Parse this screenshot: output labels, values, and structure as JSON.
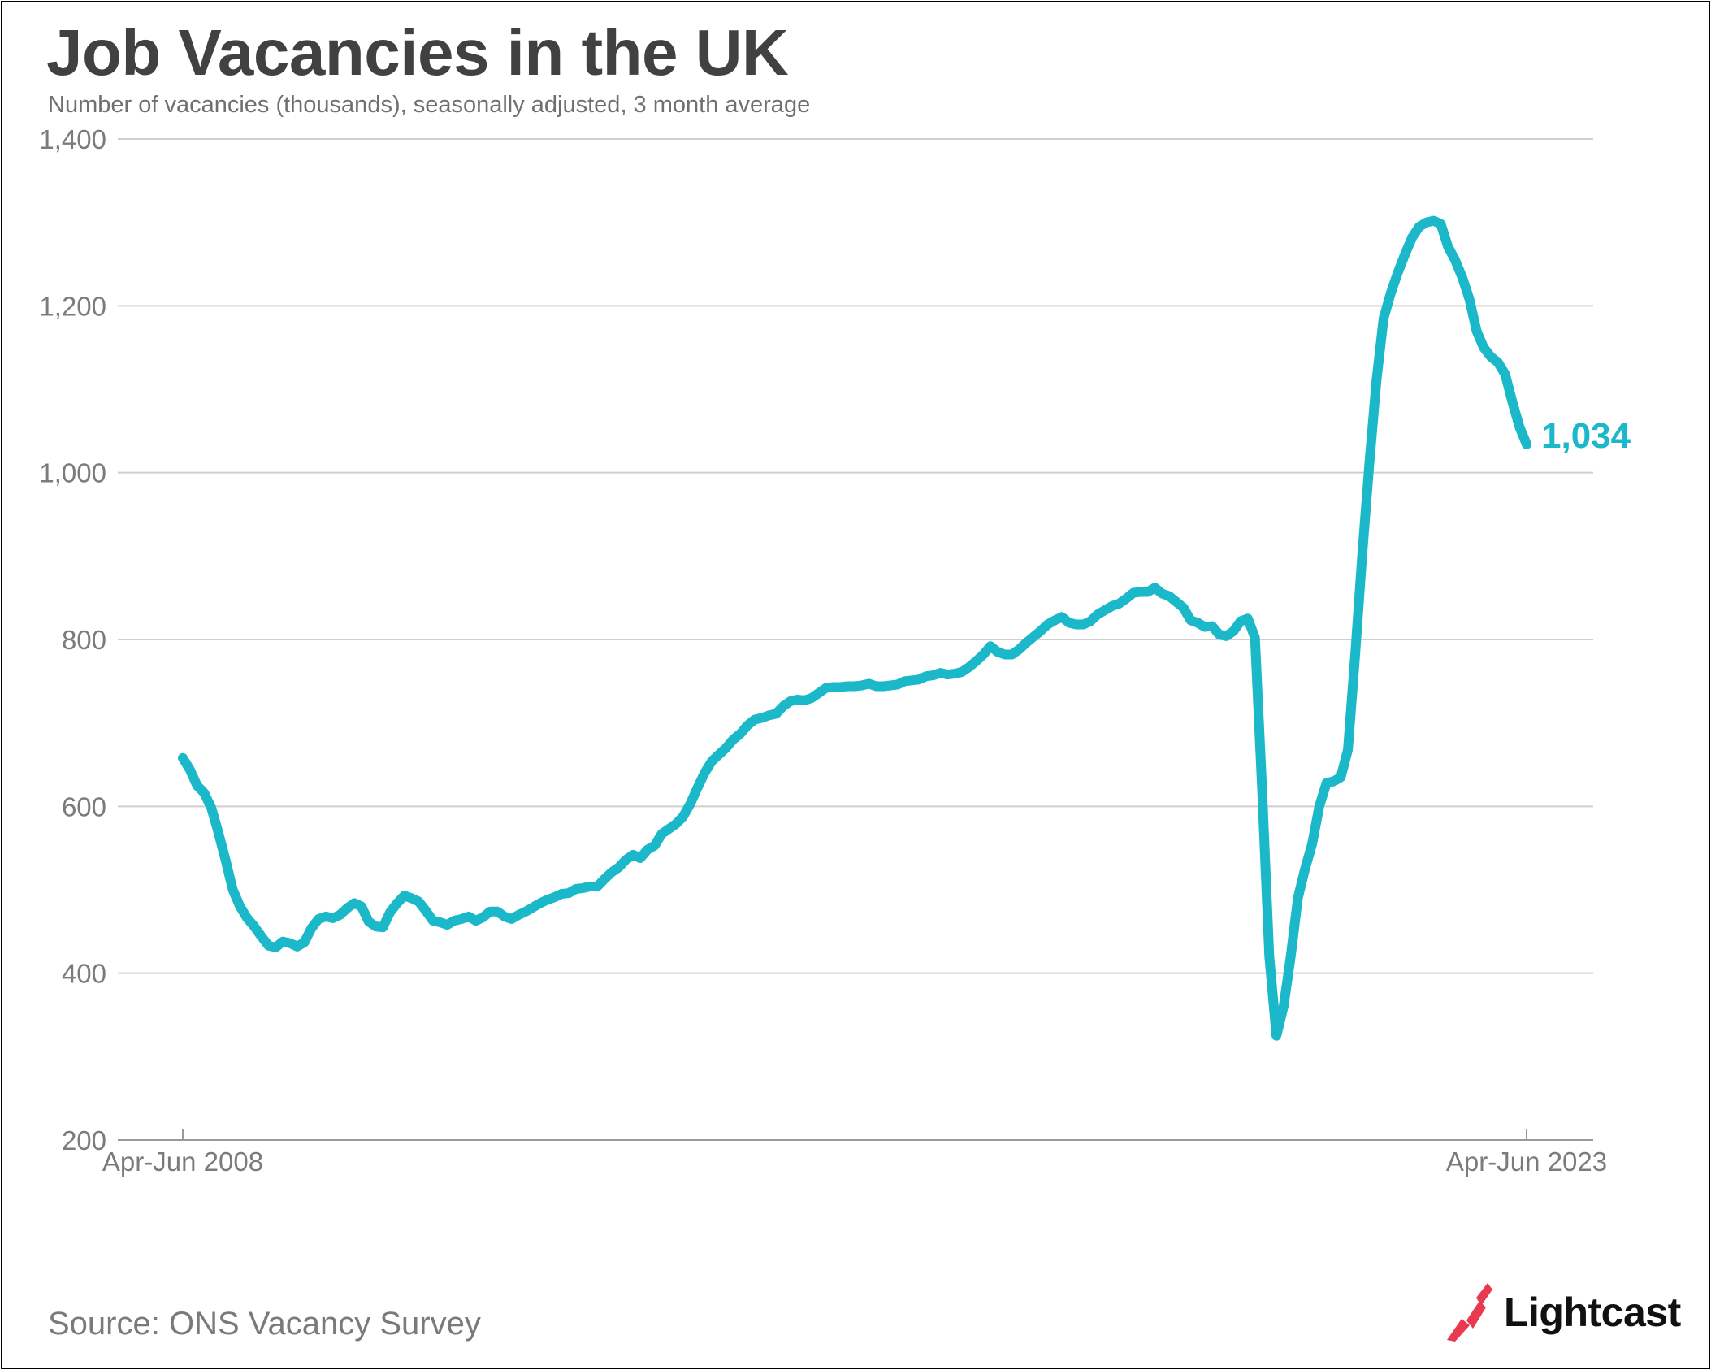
{
  "chart_data": {
    "type": "line",
    "title": "Job Vacancies in the UK",
    "subtitle": "Number of vacancies (thousands), seasonally adjusted, 3 month average",
    "xlabel": "",
    "ylabel": "",
    "ylim": [
      200,
      1400
    ],
    "yticks": [
      200,
      400,
      600,
      800,
      1000,
      1200,
      1400
    ],
    "ytick_labels": [
      "200",
      "400",
      "600",
      "800",
      "1,000",
      "1,200",
      "1,400"
    ],
    "x_start_label": "Apr-Jun 2008",
    "x_end_label": "Apr-Jun 2023",
    "x_first_period": "2008-05",
    "grid": true,
    "legend": "none",
    "line_color": "#1ab8c8",
    "end_value_label": "1,034",
    "series": [
      {
        "x_frequency": "monthly",
        "values": [
          658,
          644,
          625,
          616,
          598,
          568,
          535,
          500,
          480,
          466,
          456,
          444,
          433,
          431,
          438,
          436,
          432,
          437,
          454,
          465,
          468,
          466,
          470,
          478,
          484,
          480,
          462,
          456,
          455,
          473,
          484,
          493,
          490,
          486,
          475,
          463,
          461,
          458,
          463,
          465,
          468,
          463,
          467,
          474,
          474,
          468,
          465,
          470,
          474,
          479,
          484,
          488,
          491,
          495,
          496,
          501,
          502,
          504,
          504,
          513,
          521,
          527,
          536,
          542,
          538,
          548,
          553,
          567,
          573,
          579,
          588,
          603,
          622,
          640,
          654,
          662,
          670,
          680,
          687,
          697,
          704,
          706,
          709,
          711,
          720,
          726,
          728,
          727,
          730,
          736,
          742,
          743,
          743,
          744,
          744,
          745,
          747,
          744,
          744,
          745,
          746,
          750,
          751,
          752,
          756,
          757,
          760,
          758,
          759,
          761,
          767,
          774,
          782,
          792,
          785,
          782,
          782,
          788,
          796,
          803,
          810,
          818,
          823,
          827,
          820,
          818,
          818,
          822,
          830,
          835,
          840,
          843,
          849,
          856,
          857,
          857,
          862,
          855,
          852,
          845,
          838,
          823,
          820,
          815,
          816,
          806,
          804,
          810,
          822,
          825,
          802,
          620,
          420,
          325,
          360,
          420,
          490,
          525,
          555,
          600,
          628,
          630,
          635,
          668,
          780,
          900,
          1010,
          1110,
          1185,
          1215,
          1240,
          1262,
          1282,
          1295,
          1300,
          1302,
          1298,
          1271,
          1255,
          1234,
          1208,
          1170,
          1150,
          1139,
          1132,
          1118,
          1085,
          1055,
          1034
        ]
      }
    ]
  },
  "source_text": "Source: ONS Vacancy Survey",
  "logo": {
    "text": "Lightcast",
    "mark_color": "#e8394f"
  }
}
